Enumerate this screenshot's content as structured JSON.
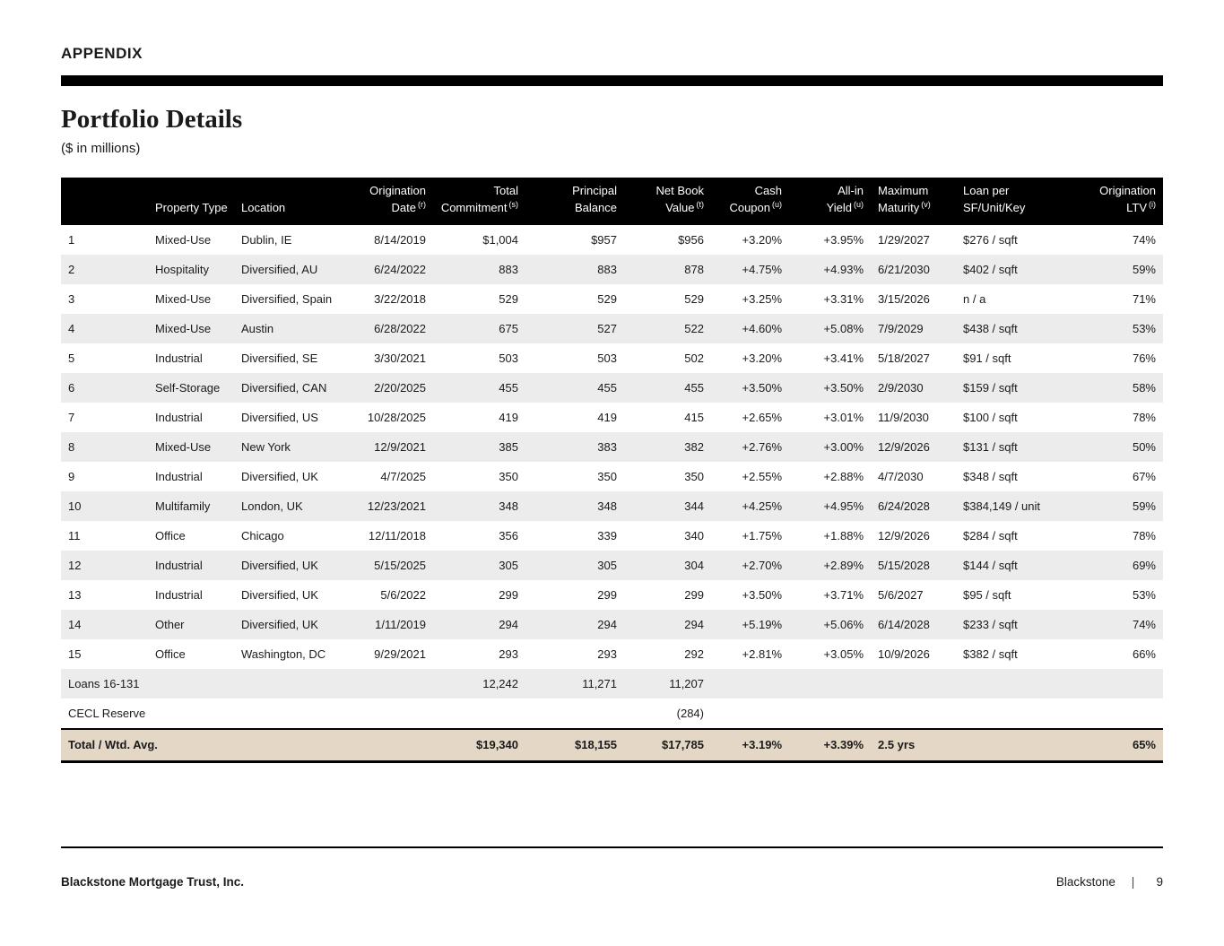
{
  "page": {
    "eyebrow": "APPENDIX",
    "title": "Portfolio Details",
    "subtitle": "($ in millions)",
    "footer_left": "Blackstone Mortgage Trust, Inc.",
    "footer_brand": "Blackstone",
    "footer_divider": "|",
    "page_number": "9"
  },
  "colors": {
    "header_bg": "#000000",
    "stripe": "#ececec",
    "total_row_bg": "#e5d7c5",
    "text": "#1a1a1a"
  },
  "table": {
    "columns": [
      {
        "lines": [],
        "sup": ""
      },
      {
        "lines": [
          "Property Type"
        ],
        "sup": ""
      },
      {
        "lines": [
          "Location"
        ],
        "sup": ""
      },
      {
        "lines": [
          "Origination",
          "Date"
        ],
        "sup": "(r)"
      },
      {
        "lines": [
          "Total",
          "Commitment"
        ],
        "sup": "(s)"
      },
      {
        "lines": [
          "Principal",
          "Balance"
        ],
        "sup": ""
      },
      {
        "lines": [
          "Net Book",
          "Value"
        ],
        "sup": "(t)"
      },
      {
        "lines": [
          "Cash",
          "Coupon"
        ],
        "sup": "(u)"
      },
      {
        "lines": [
          "All-in",
          "Yield"
        ],
        "sup": "(u)"
      },
      {
        "lines": [
          "Maximum",
          "Maturity"
        ],
        "sup": "(v)"
      },
      {
        "lines": [
          "Loan per",
          "SF/Unit/Key"
        ],
        "sup": ""
      },
      {
        "lines": [
          "Origination",
          "LTV"
        ],
        "sup": "(i)"
      }
    ],
    "rows": [
      [
        "1",
        "Mixed-Use",
        "Dublin, IE",
        "8/14/2019",
        "$1,004",
        "$957",
        "$956",
        "+3.20%",
        "+3.95%",
        "1/29/2027",
        "$276 / sqft",
        "74%"
      ],
      [
        "2",
        "Hospitality",
        "Diversified, AU",
        "6/24/2022",
        "883",
        "883",
        "878",
        "+4.75%",
        "+4.93%",
        "6/21/2030",
        "$402 / sqft",
        "59%"
      ],
      [
        "3",
        "Mixed-Use",
        "Diversified, Spain",
        "3/22/2018",
        "529",
        "529",
        "529",
        "+3.25%",
        "+3.31%",
        "3/15/2026",
        "n / a",
        "71%"
      ],
      [
        "4",
        "Mixed-Use",
        "Austin",
        "6/28/2022",
        "675",
        "527",
        "522",
        "+4.60%",
        "+5.08%",
        "7/9/2029",
        "$438 / sqft",
        "53%"
      ],
      [
        "5",
        "Industrial",
        "Diversified, SE",
        "3/30/2021",
        "503",
        "503",
        "502",
        "+3.20%",
        "+3.41%",
        "5/18/2027",
        "$91 / sqft",
        "76%"
      ],
      [
        "6",
        "Self-Storage",
        "Diversified, CAN",
        "2/20/2025",
        "455",
        "455",
        "455",
        "+3.50%",
        "+3.50%",
        "2/9/2030",
        "$159 / sqft",
        "58%"
      ],
      [
        "7",
        "Industrial",
        "Diversified, US",
        "10/28/2025",
        "419",
        "419",
        "415",
        "+2.65%",
        "+3.01%",
        "11/9/2030",
        "$100 / sqft",
        "78%"
      ],
      [
        "8",
        "Mixed-Use",
        "New York",
        "12/9/2021",
        "385",
        "383",
        "382",
        "+2.76%",
        "+3.00%",
        "12/9/2026",
        "$131 / sqft",
        "50%"
      ],
      [
        "9",
        "Industrial",
        "Diversified, UK",
        "4/7/2025",
        "350",
        "350",
        "350",
        "+2.55%",
        "+2.88%",
        "4/7/2030",
        "$348 / sqft",
        "67%"
      ],
      [
        "10",
        "Multifamily",
        "London, UK",
        "12/23/2021",
        "348",
        "348",
        "344",
        "+4.25%",
        "+4.95%",
        "6/24/2028",
        "$384,149 / unit",
        "59%"
      ],
      [
        "11",
        "Office",
        "Chicago",
        "12/11/2018",
        "356",
        "339",
        "340",
        "+1.75%",
        "+1.88%",
        "12/9/2026",
        "$284 / sqft",
        "78%"
      ],
      [
        "12",
        "Industrial",
        "Diversified, UK",
        "5/15/2025",
        "305",
        "305",
        "304",
        "+2.70%",
        "+2.89%",
        "5/15/2028",
        "$144 / sqft",
        "69%"
      ],
      [
        "13",
        "Industrial",
        "Diversified, UK",
        "5/6/2022",
        "299",
        "299",
        "299",
        "+3.50%",
        "+3.71%",
        "5/6/2027",
        "$95 / sqft",
        "53%"
      ],
      [
        "14",
        "Other",
        "Diversified, UK",
        "1/11/2019",
        "294",
        "294",
        "294",
        "+5.19%",
        "+5.06%",
        "6/14/2028",
        "$233 / sqft",
        "74%"
      ],
      [
        "15",
        "Office",
        "Washington, DC",
        "9/29/2021",
        "293",
        "293",
        "292",
        "+2.81%",
        "+3.05%",
        "10/9/2026",
        "$382 / sqft",
        "66%"
      ],
      [
        "Loans 16-131",
        "",
        "",
        "",
        "12,242",
        "11,271",
        "11,207",
        "",
        "",
        "",
        "",
        ""
      ],
      [
        "CECL Reserve",
        "",
        "",
        "",
        "",
        "",
        "(284)",
        "",
        "",
        "",
        "",
        ""
      ]
    ],
    "total_row": [
      "Total / Wtd. Avg.",
      "",
      "",
      "",
      "$19,340",
      "$18,155",
      "$17,785",
      "+3.19%",
      "+3.39%",
      "2.5 yrs",
      "",
      "65%"
    ]
  }
}
